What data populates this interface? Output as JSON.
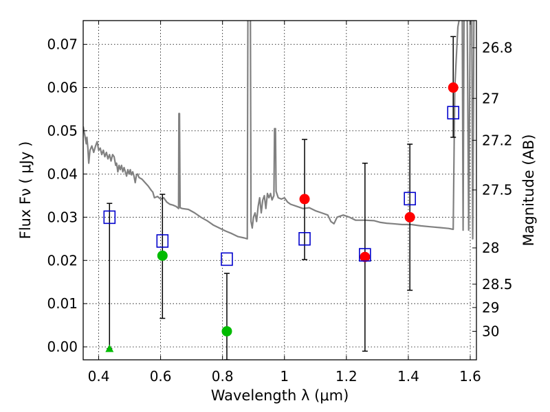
{
  "chart_data": {
    "type": "scatter",
    "title": "",
    "xlabel": "Wavelength  λ (μm)",
    "ylabel": "Flux  Fν  ( μJy )",
    "ylabel_right": "Magnitude (AB)",
    "xlim": [
      0.35,
      1.62
    ],
    "ylim": [
      -0.003,
      0.0755
    ],
    "grid": true,
    "x_ticks": [
      {
        "value": 0.4,
        "label": "0.4"
      },
      {
        "value": 0.6,
        "label": "0.6"
      },
      {
        "value": 0.8,
        "label": "0.8"
      },
      {
        "value": 1.0,
        "label": "1"
      },
      {
        "value": 1.2,
        "label": "1.2"
      },
      {
        "value": 1.4,
        "label": "1.4"
      },
      {
        "value": 1.6,
        "label": "1.6"
      }
    ],
    "y_ticks": [
      {
        "value": 0.0,
        "label": "0.00"
      },
      {
        "value": 0.01,
        "label": "0.01"
      },
      {
        "value": 0.02,
        "label": "0.02"
      },
      {
        "value": 0.03,
        "label": "0.03"
      },
      {
        "value": 0.04,
        "label": "0.04"
      },
      {
        "value": 0.05,
        "label": "0.05"
      },
      {
        "value": 0.06,
        "label": "0.06"
      },
      {
        "value": 0.07,
        "label": "0.07"
      }
    ],
    "right_ticks": [
      {
        "flux": 0.0692,
        "label": "26.8"
      },
      {
        "flux": 0.0575,
        "label": "27"
      },
      {
        "flux": 0.0478,
        "label": "27.2"
      },
      {
        "flux": 0.0363,
        "label": "27.5"
      },
      {
        "flux": 0.0229,
        "label": "28"
      },
      {
        "flux": 0.0145,
        "label": "28.5"
      },
      {
        "flux": 0.0091,
        "label": "29"
      },
      {
        "flux": 0.0036,
        "label": "30"
      }
    ],
    "colors": {
      "model": "#808080",
      "detection": "#ff0000",
      "green": "#00bb00",
      "model_box": "#0000cc",
      "errorbar": "#000000"
    },
    "model_spectrum": [
      [
        0.35,
        0.051
      ],
      [
        0.355,
        0.049
      ],
      [
        0.36,
        0.047
      ],
      [
        0.362,
        0.0485
      ],
      [
        0.365,
        0.046
      ],
      [
        0.368,
        0.0425
      ],
      [
        0.372,
        0.0455
      ],
      [
        0.378,
        0.0465
      ],
      [
        0.384,
        0.045
      ],
      [
        0.39,
        0.0465
      ],
      [
        0.395,
        0.0475
      ],
      [
        0.4,
        0.0455
      ],
      [
        0.405,
        0.046
      ],
      [
        0.41,
        0.0445
      ],
      [
        0.415,
        0.0455
      ],
      [
        0.42,
        0.044
      ],
      [
        0.425,
        0.045
      ],
      [
        0.43,
        0.0435
      ],
      [
        0.435,
        0.0445
      ],
      [
        0.44,
        0.043
      ],
      [
        0.445,
        0.0445
      ],
      [
        0.45,
        0.044
      ],
      [
        0.455,
        0.042
      ],
      [
        0.458,
        0.0425
      ],
      [
        0.462,
        0.0405
      ],
      [
        0.466,
        0.042
      ],
      [
        0.47,
        0.041
      ],
      [
        0.474,
        0.042
      ],
      [
        0.478,
        0.0405
      ],
      [
        0.482,
        0.0415
      ],
      [
        0.486,
        0.0405
      ],
      [
        0.49,
        0.0395
      ],
      [
        0.494,
        0.041
      ],
      [
        0.498,
        0.04
      ],
      [
        0.502,
        0.041
      ],
      [
        0.506,
        0.0398
      ],
      [
        0.51,
        0.0405
      ],
      [
        0.514,
        0.0395
      ],
      [
        0.518,
        0.038
      ],
      [
        0.522,
        0.0398
      ],
      [
        0.526,
        0.04
      ],
      [
        0.53,
        0.0392
      ],
      [
        0.54,
        0.0388
      ],
      [
        0.55,
        0.038
      ],
      [
        0.56,
        0.0372
      ],
      [
        0.57,
        0.0362
      ],
      [
        0.575,
        0.0358
      ],
      [
        0.58,
        0.0345
      ],
      [
        0.59,
        0.0348
      ],
      [
        0.6,
        0.0342
      ],
      [
        0.61,
        0.0345
      ],
      [
        0.62,
        0.0335
      ],
      [
        0.63,
        0.033
      ],
      [
        0.64,
        0.0328
      ],
      [
        0.65,
        0.0325
      ],
      [
        0.655,
        0.0322
      ],
      [
        0.658,
        0.032
      ],
      [
        0.659,
        0.054
      ],
      [
        0.661,
        0.054
      ],
      [
        0.663,
        0.0322
      ],
      [
        0.67,
        0.032
      ],
      [
        0.69,
        0.0318
      ],
      [
        0.71,
        0.031
      ],
      [
        0.73,
        0.03
      ],
      [
        0.75,
        0.0292
      ],
      [
        0.77,
        0.0282
      ],
      [
        0.79,
        0.0275
      ],
      [
        0.81,
        0.0268
      ],
      [
        0.83,
        0.0262
      ],
      [
        0.85,
        0.0255
      ],
      [
        0.87,
        0.0252
      ],
      [
        0.88,
        0.025
      ],
      [
        0.882,
        0.078
      ],
      [
        0.89,
        0.078
      ],
      [
        0.892,
        0.029
      ],
      [
        0.896,
        0.0275
      ],
      [
        0.9,
        0.03
      ],
      [
        0.905,
        0.031
      ],
      [
        0.91,
        0.029
      ],
      [
        0.915,
        0.0325
      ],
      [
        0.92,
        0.0345
      ],
      [
        0.925,
        0.031
      ],
      [
        0.93,
        0.034
      ],
      [
        0.935,
        0.035
      ],
      [
        0.94,
        0.032
      ],
      [
        0.945,
        0.0355
      ],
      [
        0.95,
        0.0345
      ],
      [
        0.955,
        0.0355
      ],
      [
        0.96,
        0.034
      ],
      [
        0.966,
        0.035
      ],
      [
        0.968,
        0.0505
      ],
      [
        0.971,
        0.0505
      ],
      [
        0.973,
        0.036
      ],
      [
        0.98,
        0.0345
      ],
      [
        0.99,
        0.0342
      ],
      [
        1.0,
        0.0345
      ],
      [
        1.01,
        0.0335
      ],
      [
        1.02,
        0.033
      ],
      [
        1.04,
        0.0325
      ],
      [
        1.06,
        0.032
      ],
      [
        1.08,
        0.0322
      ],
      [
        1.1,
        0.0315
      ],
      [
        1.12,
        0.031
      ],
      [
        1.14,
        0.0305
      ],
      [
        1.15,
        0.029
      ],
      [
        1.16,
        0.0285
      ],
      [
        1.17,
        0.03
      ],
      [
        1.19,
        0.0305
      ],
      [
        1.21,
        0.03
      ],
      [
        1.23,
        0.0293
      ],
      [
        1.26,
        0.0293
      ],
      [
        1.29,
        0.0292
      ],
      [
        1.31,
        0.0288
      ],
      [
        1.33,
        0.0286
      ],
      [
        1.35,
        0.0285
      ],
      [
        1.38,
        0.0283
      ],
      [
        1.41,
        0.0283
      ],
      [
        1.44,
        0.028
      ],
      [
        1.47,
        0.0278
      ],
      [
        1.5,
        0.0276
      ],
      [
        1.53,
        0.0274
      ],
      [
        1.545,
        0.0272
      ],
      [
        1.55,
        0.06
      ],
      [
        1.56,
        0.074
      ],
      [
        1.57,
        0.078
      ],
      [
        1.574,
        0.078
      ],
      [
        1.577,
        0.027
      ],
      [
        1.58,
        0.078
      ],
      [
        1.59,
        0.078
      ],
      [
        1.595,
        0.027
      ],
      [
        1.6,
        0.078
      ],
      [
        1.605,
        0.078
      ],
      [
        1.608,
        0.025
      ],
      [
        1.612,
        0.078
      ]
    ],
    "series": [
      {
        "marker": "circle",
        "color": "#ff0000",
        "points": [
          {
            "x": 1.065,
            "y": 0.0342,
            "yerr_low": 0.0202,
            "yerr_high": 0.048
          },
          {
            "x": 1.26,
            "y": 0.0208,
            "yerr_low": -0.001,
            "yerr_high": 0.0425
          },
          {
            "x": 1.405,
            "y": 0.03,
            "yerr_low": 0.0131,
            "yerr_high": 0.0469
          },
          {
            "x": 1.545,
            "y": 0.06,
            "yerr_low": 0.0485,
            "yerr_high": 0.0718
          }
        ]
      },
      {
        "marker": "circle",
        "color": "#00bb00",
        "points": [
          {
            "x": 0.606,
            "y": 0.0211,
            "yerr_low": 0.0066,
            "yerr_high": 0.0353
          },
          {
            "x": 0.814,
            "y": 0.0036,
            "yerr_low": -0.003,
            "yerr_high": 0.017
          }
        ]
      },
      {
        "marker": "triangle",
        "color": "#00bb00",
        "points": [
          {
            "x": 0.435,
            "y": -0.0004,
            "yerr_low": -0.0004,
            "yerr_high": 0.0332
          }
        ]
      },
      {
        "marker": "open-square",
        "color": "#0000cc",
        "points": [
          {
            "x": 0.435,
            "y": 0.03
          },
          {
            "x": 0.606,
            "y": 0.0245
          },
          {
            "x": 0.814,
            "y": 0.0203
          },
          {
            "x": 1.065,
            "y": 0.025
          },
          {
            "x": 1.26,
            "y": 0.0213
          },
          {
            "x": 1.405,
            "y": 0.0343
          },
          {
            "x": 1.545,
            "y": 0.0542
          }
        ]
      }
    ]
  }
}
